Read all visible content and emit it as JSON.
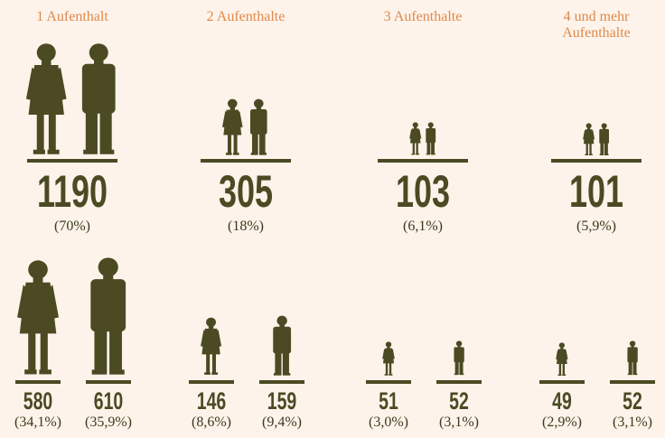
{
  "chart_data": {
    "type": "pictogram",
    "color": "#4b4a23",
    "label_color": "#e0894a",
    "categories": [
      "1 Aufenthalt",
      "2 Aufenthalte",
      "3 Aufenthalte",
      "4 und mehr Aufenthalte"
    ],
    "values": [
      1190,
      305,
      103,
      101
    ],
    "value_labels": [
      "(70%)",
      "(18%)",
      "(6,1%)",
      "(5,9%)"
    ],
    "series": [
      {
        "values": [
          580,
          146,
          51,
          49
        ],
        "value_labels": [
          "(34,1%)",
          "(8,6%)",
          "(3,0%)",
          "(2,9%)"
        ]
      },
      {
        "values": [
          610,
          159,
          52,
          52
        ],
        "value_labels": [
          "(35,9%)",
          "(9,4%)",
          "(3,1%)",
          "(3,1%)"
        ]
      }
    ]
  }
}
